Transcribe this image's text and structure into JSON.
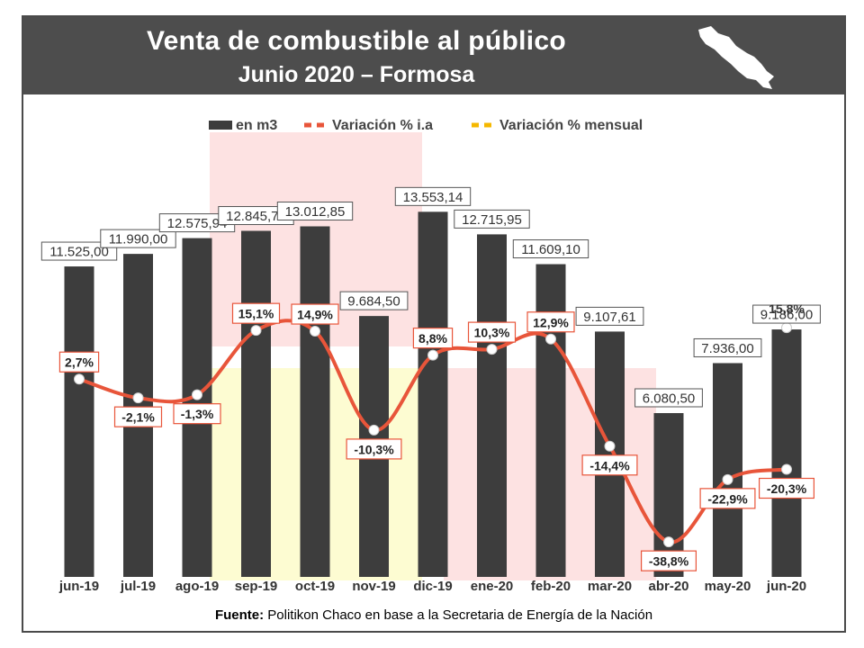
{
  "header": {
    "title": "Venta de combustible al público",
    "subtitle": "Junio 2020 – Formosa"
  },
  "source": {
    "label": "Fuente:",
    "text": " Politikon Chaco en base a la Secretaria de Energía de la Nación"
  },
  "colors": {
    "bars": "#3d3d3d",
    "ia": "#e8553a",
    "mensual": "#f5b800",
    "header": "#4d4d4d"
  },
  "chart_data": {
    "type": "bar",
    "categories": [
      "jun-19",
      "jul-19",
      "ago-19",
      "sep-19",
      "oct-19",
      "nov-19",
      "dic-19",
      "ene-20",
      "feb-20",
      "mar-20",
      "abr-20",
      "may-20",
      "jun-20"
    ],
    "series": [
      {
        "name": "en m3",
        "type": "bar",
        "values": [
          11525.0,
          11990.0,
          12575.94,
          12845.71,
          13012.85,
          9684.5,
          13553.14,
          12715.95,
          11609.1,
          9107.61,
          6080.5,
          7936.0,
          9186.0
        ],
        "labels": [
          "11.525,00",
          "11.990,00",
          "12.575,94",
          "12.845,71",
          "13.012,85",
          "9.684,50",
          "13.553,14",
          "12.715,95",
          "11.609,10",
          "9.107,61",
          "6.080,50",
          "7.936,00",
          "9.186,00"
        ]
      },
      {
        "name": "Variación % i.a",
        "type": "line",
        "values": [
          2.7,
          -2.1,
          -1.3,
          15.1,
          14.9,
          -10.3,
          8.8,
          10.3,
          12.9,
          -14.4,
          -38.8,
          -22.9,
          -20.3
        ],
        "labels": [
          "2,7%",
          "-2,1%",
          "-1,3%",
          "15,1%",
          "14,9%",
          "-10,3%",
          "8,8%",
          "10,3%",
          "12,9%",
          "-14,4%",
          "-38,8%",
          "-22,9%",
          "-20,3%"
        ]
      },
      {
        "name": "Variación % mensual",
        "type": "line",
        "values": [
          null,
          null,
          null,
          null,
          null,
          null,
          null,
          null,
          null,
          null,
          null,
          null,
          15.8
        ],
        "labels": [
          "",
          "",
          "",
          "",
          "",
          "",
          "",
          "",
          "",
          "",
          "",
          "",
          "15,8%"
        ]
      }
    ],
    "legend": "top",
    "grid": false
  }
}
